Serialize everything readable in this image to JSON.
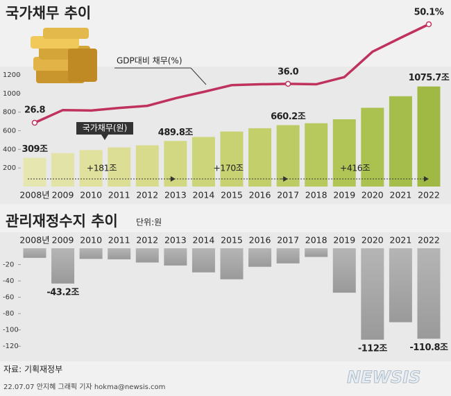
{
  "chart_data": [
    {
      "type": "bar",
      "title": "국가채무 추이",
      "categories": [
        "2008년",
        "2009",
        "2010",
        "2011",
        "2012",
        "2013",
        "2014",
        "2015",
        "2016",
        "2017",
        "2018",
        "2019",
        "2020",
        "2021",
        "2022"
      ],
      "series": [
        {
          "name": "국가채무(원)",
          "type": "bar",
          "values": [
            309,
            359.6,
            392.2,
            420.5,
            443.1,
            489.8,
            533.2,
            591.5,
            626.9,
            660.2,
            680.5,
            723.2,
            846.6,
            970.7,
            1075.7
          ],
          "value_labels": [
            "309조",
            null,
            null,
            null,
            null,
            "489.8조",
            null,
            null,
            null,
            "660.2조",
            null,
            null,
            null,
            null,
            "1075.7조"
          ],
          "colors": [
            "#e6e6b0",
            "#e2e3a6",
            "#dfe19d",
            "#dbde94",
            "#d7db8b",
            "#d2d882",
            "#cdd57a",
            "#c8d272",
            "#c3cf6b",
            "#bdcb64",
            "#b7c85d",
            "#b1c456",
            "#abc150",
            "#a5bd4a",
            "#9fb944"
          ]
        },
        {
          "name": "GDP대비 채무(%)",
          "type": "line",
          "color": "#c0325e",
          "values": [
            26.8,
            29.8,
            29.7,
            30.3,
            30.8,
            32.6,
            34.1,
            35.7,
            35.9,
            36.0,
            35.9,
            37.6,
            43.6,
            46.9,
            50.1
          ],
          "value_labels": [
            "26.8",
            null,
            null,
            null,
            null,
            null,
            null,
            null,
            null,
            "36.0",
            null,
            null,
            null,
            null,
            "50.1%"
          ]
        }
      ],
      "ylim": [
        0,
        1200
      ],
      "yticks": [
        200,
        400,
        600,
        800,
        1000,
        1200
      ],
      "annotations": [
        "+181조",
        "+170조",
        "+416조"
      ]
    },
    {
      "type": "bar",
      "title": "관리재정수지 추이",
      "subtitle": "단위:원",
      "categories": [
        "2008년",
        "2009",
        "2010",
        "2011",
        "2012",
        "2013",
        "2014",
        "2015",
        "2016",
        "2017",
        "2018",
        "2019",
        "2020",
        "2021",
        "2022"
      ],
      "values": [
        -11.7,
        -43.2,
        -13.0,
        -13.5,
        -17.4,
        -21.1,
        -29.5,
        -38.0,
        -22.7,
        -18.5,
        -10.6,
        -54.4,
        -112.0,
        -90.6,
        -110.8
      ],
      "value_labels": [
        null,
        "-43.2조",
        null,
        null,
        null,
        null,
        null,
        null,
        null,
        null,
        null,
        null,
        "-112조",
        null,
        "-110.8조"
      ],
      "color": "#9a9a9a",
      "ylim": [
        -130,
        0
      ],
      "yticks": [
        -20,
        -40,
        -60,
        -80,
        -100,
        -120
      ]
    }
  ],
  "source": "자료: 기획재정부",
  "credit": "22.07.07 안지혜 그래픽 기자 hokma@newsis.com",
  "logo": "NEWSIS"
}
